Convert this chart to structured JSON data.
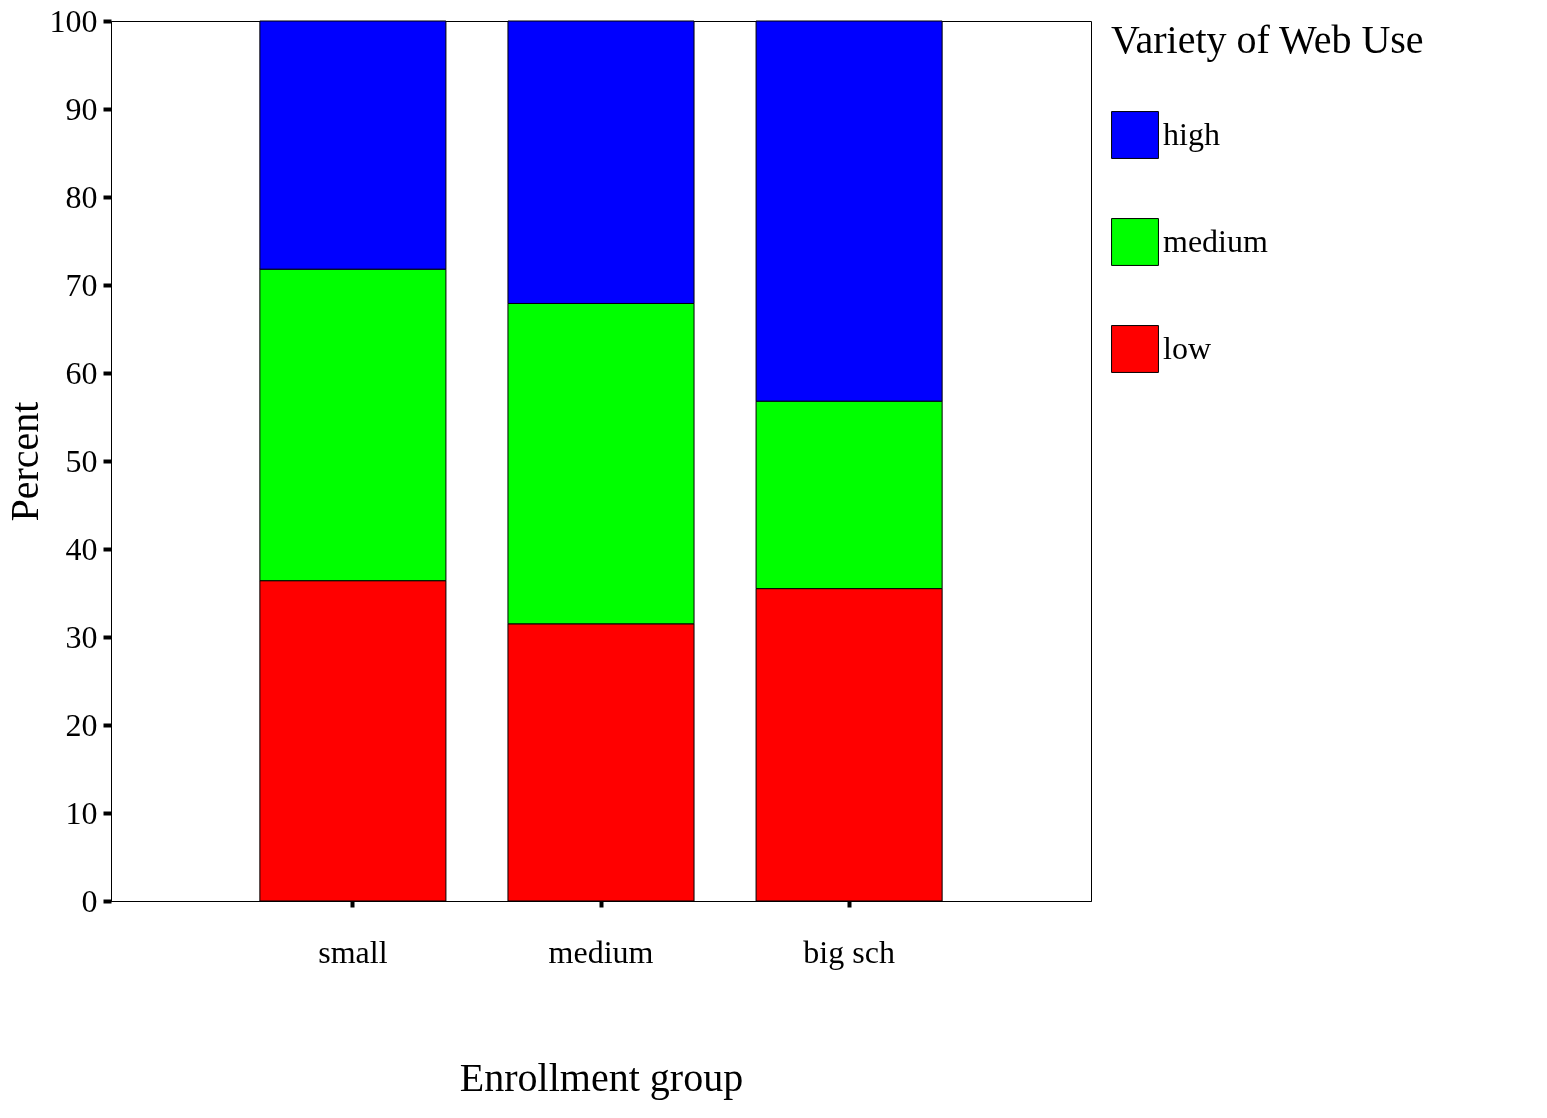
{
  "chart_data": {
    "type": "bar",
    "stacked": true,
    "xlabel": "Enrollment group",
    "ylabel": "Percent",
    "legend_title": "Variety of Web Use",
    "legend": "right",
    "grid": false,
    "categories": [
      "small",
      "medium",
      "big sch"
    ],
    "ylim": [
      0,
      100
    ],
    "yticks": [
      0,
      10,
      20,
      30,
      40,
      50,
      60,
      70,
      80,
      90,
      100
    ],
    "series": [
      {
        "name": "low",
        "color": "#ff0000",
        "values": [
          36.4,
          31.5,
          35.5
        ]
      },
      {
        "name": "medium",
        "color": "#00ff00",
        "values": [
          35.4,
          36.4,
          21.3
        ]
      },
      {
        "name": "high",
        "color": "#0000ff",
        "values": [
          28.2,
          32.1,
          43.2
        ]
      }
    ]
  }
}
